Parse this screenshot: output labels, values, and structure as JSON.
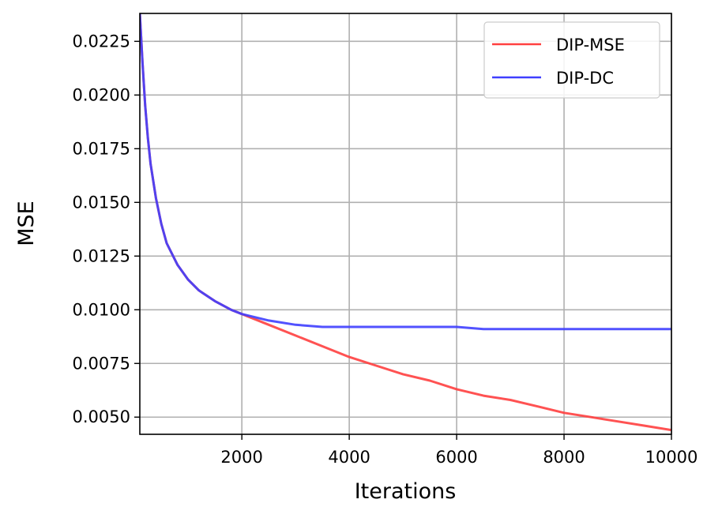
{
  "chart_data": {
    "type": "line",
    "title": "",
    "xlabel": "Iterations",
    "ylabel": "MSE",
    "xlim": [
      100,
      10000
    ],
    "ylim": [
      0.0042,
      0.0238
    ],
    "xticks": [
      2000,
      4000,
      6000,
      8000,
      10000
    ],
    "xtick_labels": [
      "2000",
      "4000",
      "6000",
      "8000",
      "10000"
    ],
    "yticks": [
      0.005,
      0.0075,
      0.01,
      0.0125,
      0.015,
      0.0175,
      0.02,
      0.0225
    ],
    "ytick_labels": [
      "0.0050",
      "0.0075",
      "0.0100",
      "0.0125",
      "0.0150",
      "0.0175",
      "0.0200",
      "0.0225"
    ],
    "grid": true,
    "legend": {
      "position": "top-right"
    },
    "series": [
      {
        "name": "DIP-MSE",
        "color": "#ff3f3f",
        "x": [
          100,
          150,
          200,
          250,
          300,
          400,
          500,
          600,
          800,
          1000,
          1200,
          1500,
          1800,
          2000,
          2500,
          3000,
          3500,
          4000,
          4500,
          5000,
          5500,
          6000,
          6500,
          7000,
          7500,
          8000,
          8500,
          9000,
          9500,
          10000
        ],
        "y": [
          0.0238,
          0.0215,
          0.0195,
          0.018,
          0.0168,
          0.0152,
          0.014,
          0.0131,
          0.0121,
          0.0114,
          0.0109,
          0.0104,
          0.01,
          0.0098,
          0.0093,
          0.0088,
          0.0083,
          0.0078,
          0.0074,
          0.007,
          0.0067,
          0.0063,
          0.006,
          0.0058,
          0.0055,
          0.0052,
          0.005,
          0.0048,
          0.0046,
          0.0044
        ]
      },
      {
        "name": "DIP-DC",
        "color": "#3f3fff",
        "x": [
          100,
          150,
          200,
          250,
          300,
          400,
          500,
          600,
          800,
          1000,
          1200,
          1500,
          1800,
          2000,
          2500,
          3000,
          3500,
          4000,
          4500,
          5000,
          5500,
          6000,
          6500,
          7000,
          7500,
          8000,
          8500,
          9000,
          9500,
          10000
        ],
        "y": [
          0.0238,
          0.0215,
          0.0195,
          0.018,
          0.0168,
          0.0152,
          0.014,
          0.0131,
          0.0121,
          0.0114,
          0.0109,
          0.0104,
          0.01,
          0.0098,
          0.0095,
          0.0093,
          0.0092,
          0.0092,
          0.0092,
          0.0092,
          0.0092,
          0.0092,
          0.0091,
          0.0091,
          0.0091,
          0.0091,
          0.0091,
          0.0091,
          0.0091,
          0.0091
        ]
      }
    ]
  }
}
